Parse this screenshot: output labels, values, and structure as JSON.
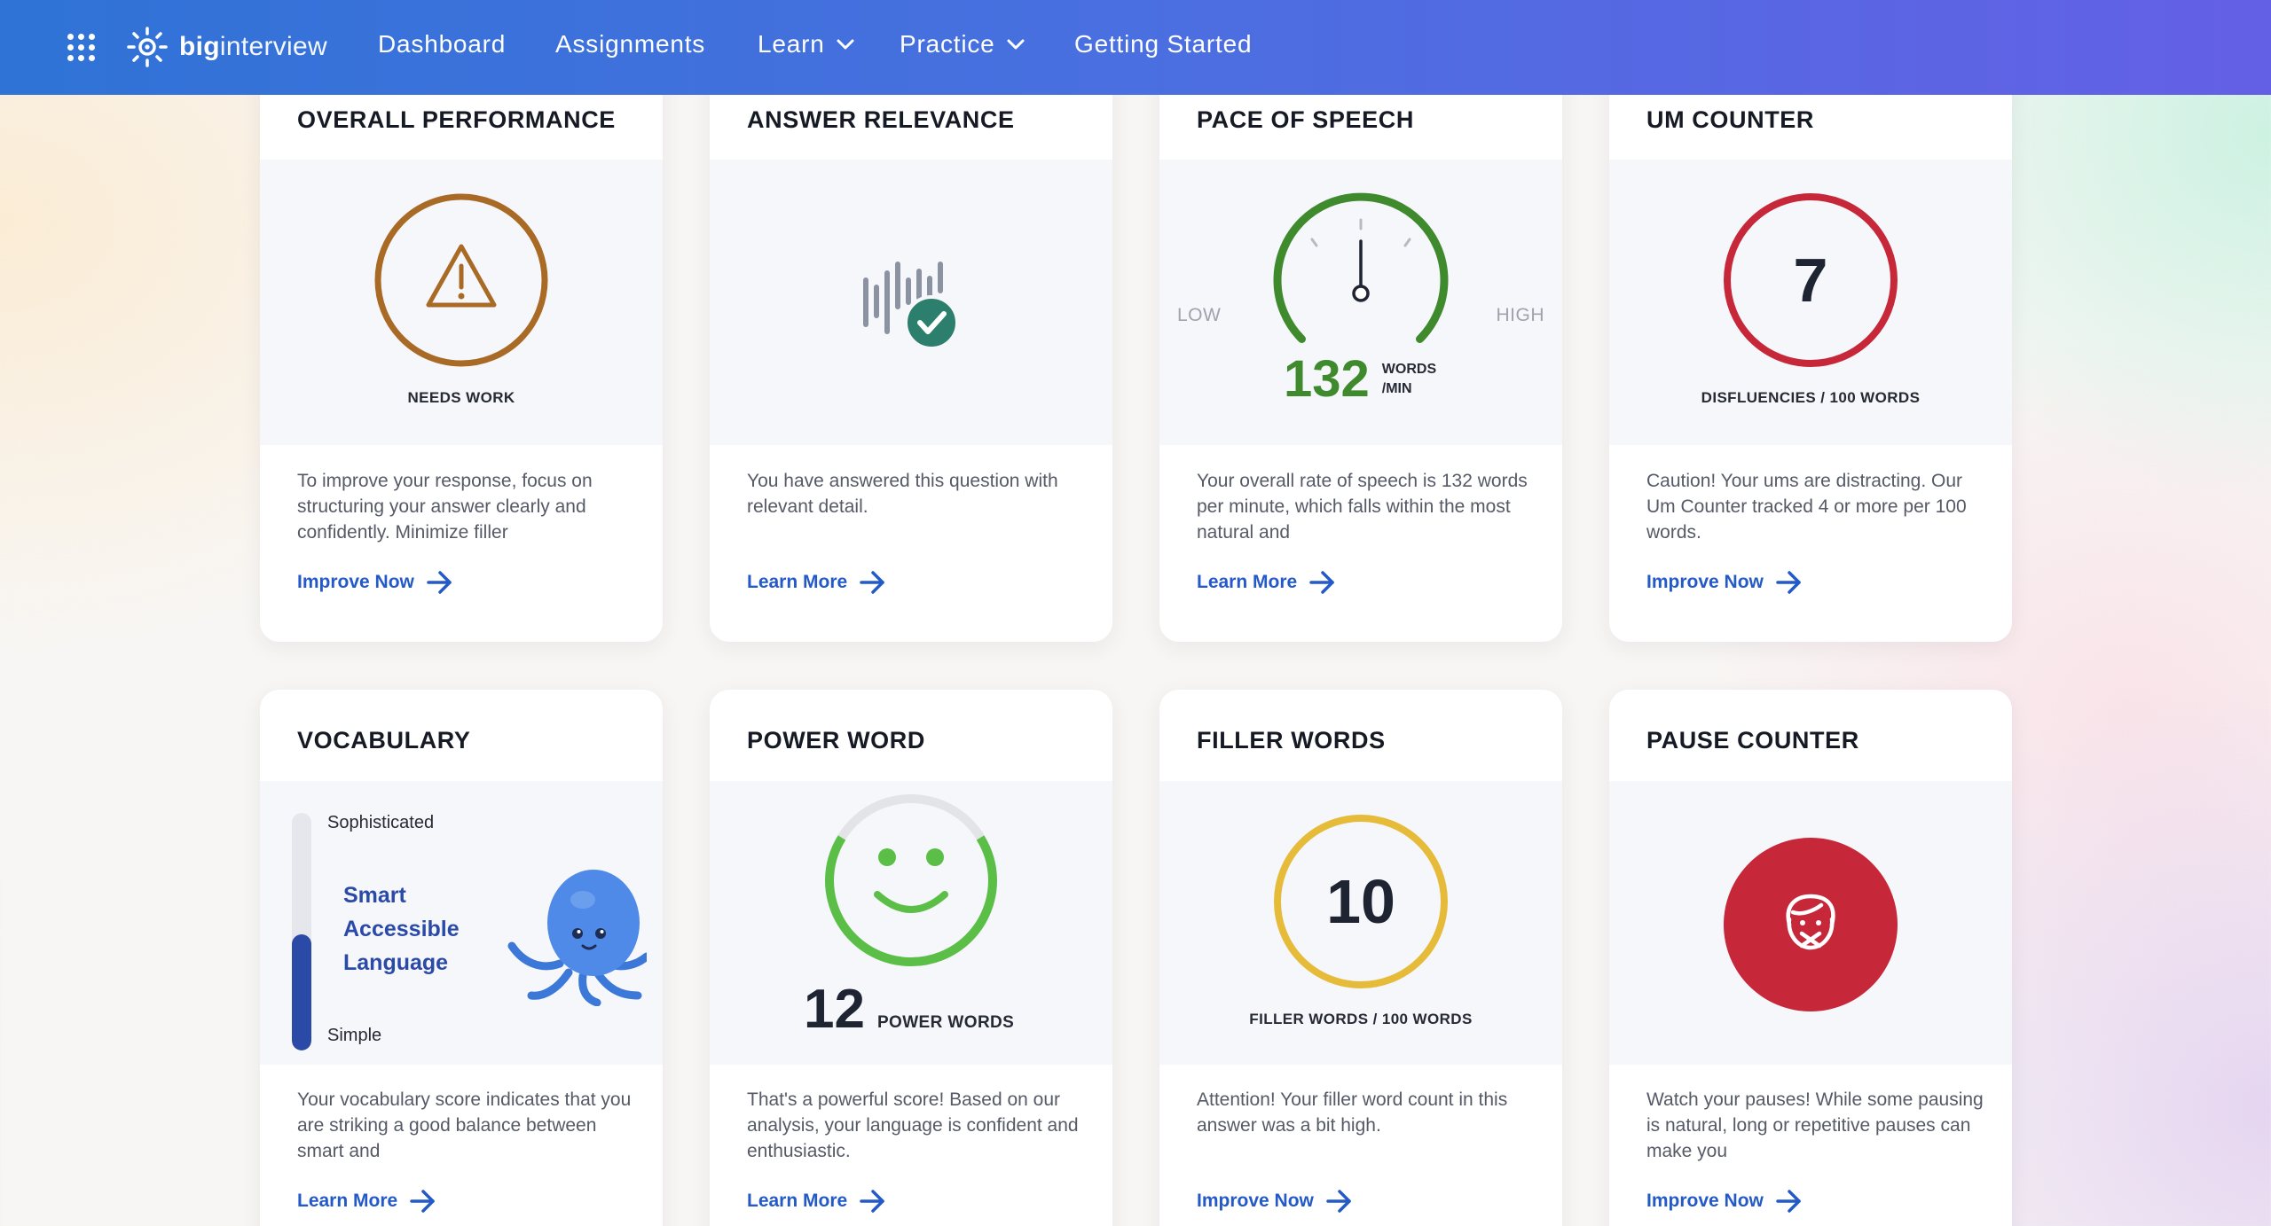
{
  "nav": {
    "logo_bold": "big",
    "logo_light": "interview",
    "items": [
      {
        "label": "Dashboard"
      },
      {
        "label": "Assignments"
      },
      {
        "label": "Learn"
      },
      {
        "label": "Practice"
      },
      {
        "label": "Getting Started"
      }
    ]
  },
  "colors": {
    "accent": "#2459c8",
    "needs_work": "#a86a25",
    "good_green": "#3e8a2d",
    "warn_red": "#c6283a",
    "filler_yellow": "#e6bb3a",
    "relevance_teal": "#2d7f6d"
  },
  "cards": {
    "overall": {
      "title": "OVERALL PERFORMANCE",
      "icon": "warning-icon",
      "caption": "NEEDS WORK",
      "desc": "To improve your response, focus on structuring your answer clearly and confidently. Minimize filler",
      "link": "Improve Now"
    },
    "relevance": {
      "title": "ANSWER RELEVANCE",
      "icon": "soundwave-check-icon",
      "desc": "You have answered this question with relevant detail.",
      "link": "Learn More"
    },
    "pace": {
      "title": "PACE OF SPEECH",
      "low": "LOW",
      "high": "HIGH",
      "value": "132",
      "unit_line1": "WORDS",
      "unit_line2": "/MIN",
      "desc": "Your overall rate of speech is 132 words per minute, which falls within the most natural and",
      "link": "Learn More"
    },
    "um": {
      "title": "UM COUNTER",
      "value": "7",
      "caption": "DISFLUENCIES / 100 WORDS",
      "desc": "Caution! Your ums are distracting. Our Um Counter tracked 4 or more per 100 words.",
      "link": "Improve Now"
    },
    "vocab": {
      "title": "VOCABULARY",
      "top_label": "Sophisticated",
      "bottom_label": "Simple",
      "level_line1": "Smart",
      "level_line2": "Accessible",
      "level_line3": "Language",
      "level_fraction": 0.49,
      "mascot": "octopus-mascot",
      "desc": "Your vocabulary score indicates that you are striking a good balance between smart and",
      "link": "Learn More"
    },
    "power": {
      "title": "POWER WORD",
      "icon": "smiley-icon",
      "value": "12",
      "unit": "POWER WORDS",
      "desc": "That's a powerful score! Based on our analysis, your language is confident and enthusiastic.",
      "link": "Learn More"
    },
    "filler": {
      "title": "FILLER WORDS",
      "value": "10",
      "caption": "FILLER WORDS / 100 WORDS",
      "desc": "Attention! Your filler word count in this answer was a bit high.",
      "link": "Improve Now"
    },
    "pause": {
      "title": "PAUSE COUNTER",
      "icon": "muted-face-icon",
      "desc": "Watch your pauses! While some pausing is natural, long or repetitive pauses can make you",
      "link": "Improve Now"
    }
  }
}
